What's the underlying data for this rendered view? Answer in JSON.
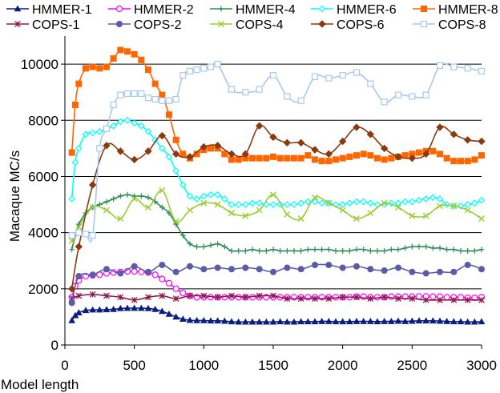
{
  "chart_data": {
    "type": "line",
    "xlabel": "Model length",
    "ylabel": "Macaque MC/s",
    "xlim": [
      0,
      3000
    ],
    "ylim": [
      0,
      11000
    ],
    "x_ticks": [
      0,
      500,
      1000,
      1500,
      2000,
      2500,
      3000
    ],
    "y_ticks": [
      0,
      2000,
      4000,
      6000,
      8000,
      10000
    ],
    "grid": "horizontal",
    "legend_placement": "top",
    "series": [
      {
        "name": "HMMER-1",
        "color": "#0B1E80",
        "marker": "triangle",
        "x": [
          50,
          75,
          100,
          150,
          200,
          250,
          300,
          350,
          400,
          450,
          500,
          550,
          600,
          650,
          700,
          750,
          800,
          850,
          900,
          950,
          1000,
          1050,
          1100,
          1150,
          1200,
          1250,
          1300,
          1350,
          1400,
          1450,
          1500,
          1550,
          1600,
          1650,
          1700,
          1750,
          1800,
          1850,
          1900,
          1950,
          2000,
          2050,
          2100,
          2150,
          2200,
          2250,
          2300,
          2350,
          2400,
          2450,
          2500,
          2550,
          2600,
          2650,
          2700,
          2750,
          2800,
          2850,
          2900,
          2950,
          3000
        ],
        "y": [
          870,
          1050,
          1150,
          1230,
          1250,
          1250,
          1260,
          1270,
          1300,
          1310,
          1310,
          1310,
          1300,
          1270,
          1200,
          1100,
          1000,
          920,
          880,
          870,
          870,
          860,
          860,
          850,
          830,
          820,
          820,
          820,
          820,
          820,
          820,
          830,
          820,
          820,
          830,
          830,
          830,
          840,
          840,
          830,
          830,
          830,
          840,
          840,
          840,
          830,
          840,
          840,
          850,
          840,
          850,
          860,
          860,
          860,
          850,
          840,
          830,
          830,
          820,
          820,
          830
        ]
      },
      {
        "name": "HMMER-2",
        "color": "#FF00FF",
        "marker": "circle-open",
        "x": [
          50,
          75,
          100,
          150,
          200,
          250,
          300,
          350,
          400,
          450,
          500,
          550,
          600,
          650,
          700,
          750,
          800,
          850,
          900,
          950,
          1000,
          1050,
          1100,
          1150,
          1200,
          1250,
          1300,
          1350,
          1400,
          1450,
          1500,
          1550,
          1600,
          1650,
          1700,
          1750,
          1800,
          1850,
          1900,
          1950,
          2000,
          2050,
          2100,
          2150,
          2200,
          2250,
          2300,
          2350,
          2400,
          2450,
          2500,
          2550,
          2600,
          2650,
          2700,
          2750,
          2800,
          2850,
          2900,
          2950,
          3000
        ],
        "y": [
          1700,
          2100,
          2300,
          2450,
          2480,
          2500,
          2550,
          2580,
          2600,
          2620,
          2620,
          2600,
          2580,
          2500,
          2350,
          2200,
          2000,
          1850,
          1750,
          1700,
          1700,
          1700,
          1700,
          1700,
          1700,
          1700,
          1700,
          1700,
          1700,
          1700,
          1700,
          1700,
          1700,
          1700,
          1700,
          1700,
          1700,
          1700,
          1700,
          1700,
          1700,
          1700,
          1720,
          1720,
          1700,
          1700,
          1700,
          1720,
          1720,
          1720,
          1720,
          1730,
          1730,
          1720,
          1720,
          1700,
          1700,
          1700,
          1680,
          1680,
          1700
        ]
      },
      {
        "name": "HMMER-4",
        "color": "#2E8B57",
        "marker": "plus",
        "x": [
          50,
          75,
          100,
          150,
          200,
          250,
          300,
          350,
          400,
          450,
          500,
          550,
          600,
          650,
          700,
          750,
          800,
          850,
          900,
          950,
          1000,
          1050,
          1100,
          1150,
          1200,
          1250,
          1300,
          1350,
          1400,
          1450,
          1500,
          1550,
          1600,
          1650,
          1700,
          1750,
          1800,
          1850,
          1900,
          1950,
          2000,
          2050,
          2100,
          2150,
          2200,
          2250,
          2300,
          2350,
          2400,
          2450,
          2500,
          2550,
          2600,
          2650,
          2700,
          2750,
          2800,
          2850,
          2900,
          2950,
          3000
        ],
        "y": [
          3400,
          3900,
          4300,
          4700,
          4900,
          5000,
          5100,
          5200,
          5300,
          5350,
          5300,
          5300,
          5250,
          5100,
          4900,
          4700,
          4300,
          3900,
          3600,
          3500,
          3500,
          3550,
          3600,
          3500,
          3350,
          3350,
          3350,
          3400,
          3350,
          3350,
          3400,
          3350,
          3350,
          3350,
          3350,
          3400,
          3400,
          3400,
          3400,
          3350,
          3350,
          3350,
          3400,
          3400,
          3350,
          3350,
          3350,
          3400,
          3400,
          3450,
          3500,
          3500,
          3500,
          3450,
          3450,
          3400,
          3400,
          3350,
          3350,
          3350,
          3400
        ]
      },
      {
        "name": "HMMER-6",
        "color": "#00FFFF",
        "marker": "diamond-open",
        "x": [
          50,
          75,
          100,
          150,
          200,
          250,
          300,
          350,
          400,
          450,
          500,
          550,
          600,
          650,
          700,
          750,
          800,
          850,
          900,
          950,
          1000,
          1050,
          1100,
          1150,
          1200,
          1250,
          1300,
          1350,
          1400,
          1450,
          1500,
          1550,
          1600,
          1650,
          1700,
          1750,
          1800,
          1850,
          1900,
          1950,
          2000,
          2050,
          2100,
          2150,
          2200,
          2250,
          2300,
          2350,
          2400,
          2450,
          2500,
          2550,
          2600,
          2650,
          2700,
          2750,
          2800,
          2850,
          2900,
          2950,
          3000
        ],
        "y": [
          5200,
          6500,
          7000,
          7500,
          7550,
          7600,
          7700,
          7800,
          7950,
          8000,
          7900,
          7800,
          7600,
          7300,
          7000,
          6700,
          6200,
          5700,
          5300,
          5200,
          5300,
          5350,
          5350,
          5200,
          5000,
          5000,
          5000,
          5050,
          5050,
          5000,
          5000,
          5000,
          5000,
          5000,
          5050,
          5100,
          5100,
          5050,
          5050,
          5000,
          5000,
          5050,
          5100,
          5100,
          5050,
          5000,
          5000,
          5050,
          5050,
          5100,
          5100,
          5150,
          5200,
          5250,
          5200,
          5000,
          4950,
          4950,
          5000,
          5050,
          5150
        ]
      },
      {
        "name": "HMMER-8",
        "color": "#FF6600",
        "marker": "square",
        "x": [
          50,
          75,
          100,
          150,
          200,
          250,
          300,
          350,
          400,
          450,
          500,
          550,
          600,
          650,
          700,
          750,
          800,
          850,
          900,
          950,
          1000,
          1050,
          1100,
          1150,
          1200,
          1250,
          1300,
          1350,
          1400,
          1450,
          1500,
          1550,
          1600,
          1650,
          1700,
          1750,
          1800,
          1850,
          1900,
          1950,
          2000,
          2050,
          2100,
          2150,
          2200,
          2250,
          2300,
          2350,
          2400,
          2450,
          2500,
          2550,
          2600,
          2650,
          2700,
          2750,
          2800,
          2850,
          2900,
          2950,
          3000
        ],
        "y": [
          6850,
          8550,
          9300,
          9850,
          9900,
          9850,
          9900,
          10200,
          10500,
          10450,
          10350,
          10150,
          9800,
          9300,
          8900,
          8200,
          7300,
          6800,
          6650,
          6800,
          6950,
          7000,
          7000,
          6800,
          6600,
          6600,
          6650,
          6650,
          6650,
          6650,
          6700,
          6650,
          6650,
          6650,
          6650,
          6750,
          6600,
          6550,
          6550,
          6600,
          6650,
          6700,
          6750,
          6800,
          6750,
          6650,
          6600,
          6650,
          6700,
          6750,
          6800,
          6850,
          6900,
          6900,
          6800,
          6650,
          6550,
          6550,
          6550,
          6600,
          6750
        ]
      },
      {
        "name": "COPS-1",
        "color": "#8B1A4A",
        "marker": "asterisk",
        "x": [
          50,
          100,
          200,
          300,
          400,
          500,
          600,
          700,
          800,
          900,
          1000,
          1100,
          1200,
          1300,
          1400,
          1500,
          1600,
          1700,
          1800,
          1900,
          2000,
          2100,
          2200,
          2300,
          2400,
          2500,
          2600,
          2700,
          2800,
          2900,
          3000
        ],
        "y": [
          1650,
          1750,
          1800,
          1750,
          1700,
          1600,
          1700,
          1750,
          1650,
          1750,
          1750,
          1700,
          1750,
          1700,
          1750,
          1750,
          1650,
          1650,
          1650,
          1650,
          1700,
          1700,
          1650,
          1700,
          1650,
          1650,
          1600,
          1600,
          1600,
          1600,
          1600
        ]
      },
      {
        "name": "COPS-2",
        "color": "#5B5BA8",
        "marker": "circle",
        "x": [
          50,
          100,
          200,
          300,
          400,
          500,
          600,
          700,
          800,
          900,
          1000,
          1100,
          1200,
          1300,
          1400,
          1500,
          1600,
          1700,
          1800,
          1900,
          2000,
          2100,
          2200,
          2300,
          2400,
          2500,
          2600,
          2700,
          2800,
          2900,
          3000
        ],
        "y": [
          1500,
          2450,
          2500,
          2700,
          2550,
          2800,
          2600,
          2850,
          2600,
          2800,
          2700,
          2750,
          2700,
          2750,
          2700,
          2600,
          2750,
          2700,
          2850,
          2850,
          2750,
          2800,
          2700,
          2650,
          2750,
          2600,
          2550,
          2600,
          2600,
          2850,
          2700
        ]
      },
      {
        "name": "COPS-4",
        "color": "#9ACD32",
        "marker": "x",
        "x": [
          50,
          100,
          200,
          300,
          400,
          500,
          600,
          700,
          800,
          900,
          1000,
          1100,
          1200,
          1300,
          1400,
          1500,
          1600,
          1700,
          1800,
          1900,
          2000,
          2100,
          2200,
          2300,
          2400,
          2500,
          2600,
          2700,
          2800,
          2900,
          3000
        ],
        "y": [
          3700,
          4200,
          4900,
          4800,
          4500,
          5200,
          4900,
          5500,
          4400,
          4800,
          5050,
          5000,
          4700,
          4600,
          4800,
          5350,
          4650,
          4500,
          5250,
          5050,
          4800,
          4500,
          4700,
          5050,
          4900,
          4600,
          4600,
          4950,
          4950,
          4800,
          4500
        ]
      },
      {
        "name": "COPS-6",
        "color": "#8B3A0F",
        "marker": "diamond",
        "x": [
          50,
          100,
          200,
          300,
          400,
          500,
          600,
          700,
          800,
          900,
          1000,
          1100,
          1200,
          1300,
          1400,
          1500,
          1600,
          1700,
          1800,
          1900,
          2000,
          2100,
          2200,
          2300,
          2400,
          2500,
          2600,
          2700,
          2800,
          2900,
          3000
        ],
        "y": [
          2000,
          3500,
          5700,
          7100,
          6900,
          6600,
          6900,
          7450,
          6800,
          6700,
          7050,
          7100,
          6800,
          6800,
          7800,
          7400,
          7200,
          7200,
          6950,
          6800,
          7250,
          7750,
          7500,
          7000,
          6700,
          6650,
          6800,
          7750,
          7500,
          7300,
          7250
        ]
      },
      {
        "name": "COPS-8",
        "color": "#A8C8F0",
        "marker": "square-open",
        "x": [
          50,
          100,
          150,
          200,
          250,
          300,
          350,
          400,
          450,
          500,
          550,
          600,
          650,
          700,
          750,
          800,
          850,
          900,
          950,
          1000,
          1050,
          1100,
          1200,
          1300,
          1400,
          1500,
          1600,
          1700,
          1800,
          1900,
          2000,
          2100,
          2200,
          2300,
          2400,
          2500,
          2600,
          2700,
          2800,
          2900,
          3000
        ],
        "y": [
          3900,
          4000,
          3950,
          3900,
          7000,
          7700,
          8550,
          8900,
          8950,
          8950,
          8950,
          8800,
          8750,
          8700,
          8700,
          8750,
          9600,
          9750,
          9800,
          9850,
          9900,
          10000,
          9100,
          9000,
          9100,
          9600,
          8850,
          8700,
          9550,
          9500,
          9600,
          9700,
          9300,
          8650,
          8900,
          8850,
          8900,
          9950,
          9900,
          9850,
          9750
        ]
      }
    ]
  }
}
